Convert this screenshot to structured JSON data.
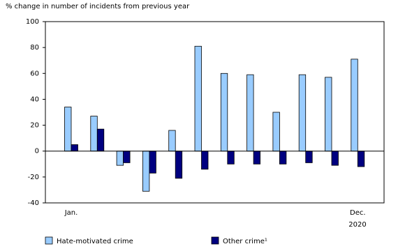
{
  "chart_data": {
    "type": "bar",
    "ylabel": "% change in number of incidents from previous year",
    "categories": [
      "Jan.",
      null,
      null,
      null,
      null,
      null,
      null,
      null,
      null,
      null,
      null,
      "Dec."
    ],
    "xlabel": "2020",
    "series": [
      {
        "name": "Hate-motivated crime",
        "color": "#99ccff",
        "values": [
          34,
          27,
          -11,
          -31,
          16,
          81,
          60,
          59,
          30,
          59,
          57,
          71
        ]
      },
      {
        "name": "Other crime¹",
        "color": "#000080",
        "values": [
          5,
          17,
          -9,
          -17,
          -21,
          -14,
          -10,
          -10,
          -10,
          -9,
          -11,
          -12
        ]
      }
    ],
    "ylim": [
      -40,
      100
    ],
    "yticks": [
      -40,
      -20,
      0,
      20,
      40,
      60,
      80,
      100
    ],
    "legend": "bottom"
  }
}
